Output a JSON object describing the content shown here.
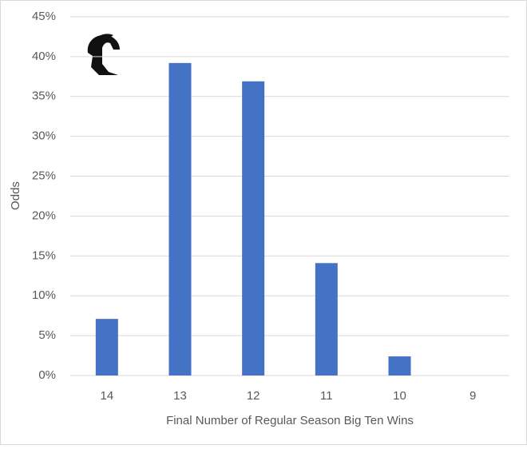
{
  "chart_data": {
    "type": "bar",
    "x_label": "Final Number of Regular Season Big Ten Wins",
    "y_label": "Odds",
    "categories": [
      "14",
      "13",
      "12",
      "11",
      "10",
      "9"
    ],
    "values": [
      7.1,
      39.2,
      36.9,
      14.1,
      2.4,
      0
    ],
    "color": "#4472c4",
    "ylim": [
      0,
      45
    ],
    "yticks": [
      {
        "value": 0,
        "label": "0%"
      },
      {
        "value": 5,
        "label": "5%"
      },
      {
        "value": 10,
        "label": "10%"
      },
      {
        "value": 15,
        "label": "15%"
      },
      {
        "value": 20,
        "label": "20%"
      },
      {
        "value": 25,
        "label": "25%"
      },
      {
        "value": 30,
        "label": "30%"
      },
      {
        "value": 35,
        "label": "35%"
      },
      {
        "value": 40,
        "label": "40%"
      },
      {
        "value": 45,
        "label": "45%"
      }
    ],
    "grid": true
  }
}
